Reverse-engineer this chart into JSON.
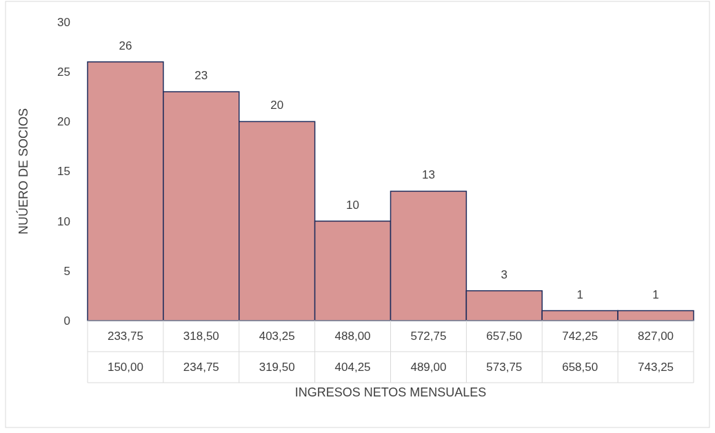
{
  "chart_data": {
    "type": "bar",
    "xlabel": "INGRESOS NETOS MENSUALES",
    "ylabel": "NUÚERO DE SOCIOS",
    "categories": [
      "233,75\n150,00",
      "318,50\n234,75",
      "403,25\n319,50",
      "488,00\n404,25",
      "572,75\n489,00",
      "657,50\n573,75",
      "742,25\n658,50",
      "827,00\n743,25"
    ],
    "values": [
      26,
      23,
      20,
      10,
      13,
      3,
      1,
      1
    ],
    "color": "#d99694",
    "ylim": [
      0,
      30
    ],
    "yticks": [
      0,
      5,
      10,
      15,
      20,
      25,
      30
    ],
    "grid": false,
    "data_labels": true
  }
}
